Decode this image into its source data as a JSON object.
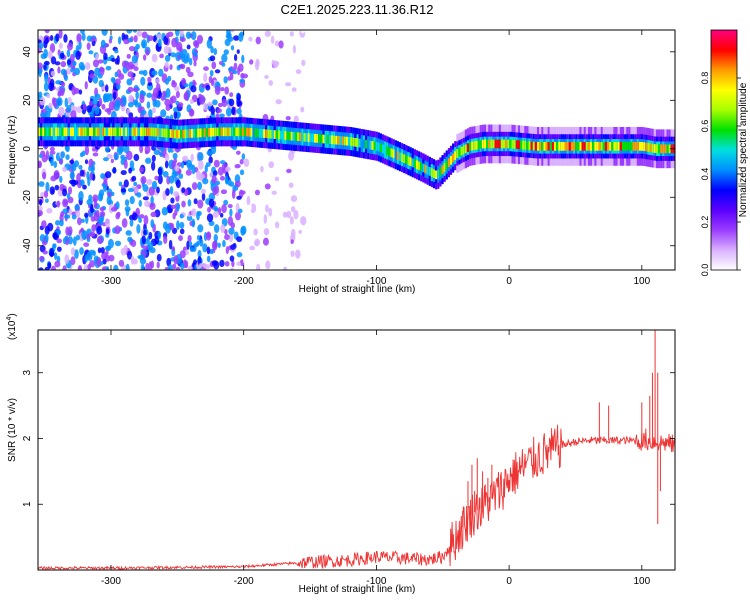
{
  "page": {
    "title": "C2E1.2025.223.11.36.R12"
  },
  "chart_data": [
    {
      "type": "heatmap",
      "title": "C2E1.2025.223.11.36.R12",
      "xlabel": "Height of straight line (km)",
      "ylabel": "Frequency (Hz)",
      "xlim": [
        -355,
        125
      ],
      "ylim": [
        -50,
        49
      ],
      "xticks": [
        -300,
        -200,
        -100,
        0,
        100
      ],
      "yticks": [
        -40,
        -20,
        0,
        20,
        40
      ],
      "colorbar": {
        "label": "Normalized spectral amplitude",
        "range": [
          0,
          1
        ],
        "ticks": [
          0.0,
          0.2,
          0.4,
          0.6,
          0.8
        ],
        "tick_labels": [
          "0.0",
          "0.2",
          "0.4",
          "0.6",
          "0.8"
        ],
        "colors": [
          "#ffffff",
          "#d9b0ff",
          "#9a3cff",
          "#5a00ff",
          "#0000ff",
          "#0090ff",
          "#00e0e0",
          "#00e000",
          "#a8ff00",
          "#ffff00",
          "#ff9a00",
          "#ff0000",
          "#ff0080"
        ]
      },
      "ridge": {
        "x": [
          -355,
          -330,
          -300,
          -270,
          -250,
          -220,
          -200,
          -180,
          -160,
          -140,
          -120,
          -100,
          -80,
          -65,
          -55,
          -45,
          -40,
          -30,
          -20,
          0,
          20,
          40,
          60,
          80,
          100,
          110,
          125
        ],
        "y": [
          7,
          7,
          7,
          7,
          6,
          7,
          7,
          6,
          5,
          4,
          3,
          1,
          -4,
          -8,
          -11,
          -5,
          -2,
          1,
          2,
          2,
          1,
          1,
          1,
          1,
          1,
          0,
          0
        ]
      },
      "noise_region": {
        "x": [
          -355,
          -200
        ],
        "y": [
          -50,
          49
        ]
      }
    },
    {
      "type": "line",
      "xlabel": "Height of straight line (km)",
      "ylabel": "SNR (10 * v/v)",
      "yunit_label": "(x10",
      "yunit_exp": "4",
      "yunit_close": ")",
      "xlim": [
        -355,
        125
      ],
      "ylim": [
        0,
        3.65
      ],
      "xticks": [
        -300,
        -200,
        -100,
        0,
        100
      ],
      "yticks": [
        1,
        2,
        3
      ],
      "color": "#ee3333",
      "series": [
        {
          "x": [
            -355,
            -300,
            -250,
            -200,
            -180,
            -150,
            -120,
            -100,
            -80,
            -60,
            -50,
            -45,
            -40,
            -35,
            -30,
            -25,
            -20,
            -15,
            -10,
            -5,
            0,
            10,
            20,
            30,
            40,
            50,
            60,
            70,
            80,
            90,
            100,
            110,
            120,
            125
          ],
          "y": [
            0.03,
            0.03,
            0.04,
            0.05,
            0.08,
            0.12,
            0.15,
            0.2,
            0.18,
            0.16,
            0.2,
            0.35,
            0.5,
            0.65,
            0.8,
            0.9,
            0.95,
            1.05,
            1.15,
            1.25,
            1.4,
            1.55,
            1.7,
            1.8,
            1.9,
            1.95,
            1.97,
            1.97,
            1.97,
            1.97,
            1.96,
            1.95,
            1.93,
            1.9
          ]
        }
      ],
      "spikes": [
        {
          "x": -35,
          "y": 0.9
        },
        {
          "x": -31,
          "y": 1.35
        },
        {
          "x": -28,
          "y": 1.6
        },
        {
          "x": -26,
          "y": 1.2
        },
        {
          "x": -24,
          "y": 1.7
        },
        {
          "x": -22,
          "y": 1.1
        },
        {
          "x": -20,
          "y": 1.5
        },
        {
          "x": -18,
          "y": 1.3
        },
        {
          "x": -16,
          "y": 1.4
        },
        {
          "x": -13,
          "y": 1.6
        },
        {
          "x": 68,
          "y": 2.55
        },
        {
          "x": 75,
          "y": 2.5
        },
        {
          "x": 100,
          "y": 2.55
        },
        {
          "x": 103,
          "y": 2.15
        },
        {
          "x": 106,
          "y": 2.65
        },
        {
          "x": 108,
          "y": 3.0
        },
        {
          "x": 110,
          "y": 3.65
        },
        {
          "x": 112,
          "y": 3.0
        },
        {
          "x": 114,
          "y": 1.2
        },
        {
          "x": 112,
          "y": 0.7
        }
      ]
    }
  ]
}
